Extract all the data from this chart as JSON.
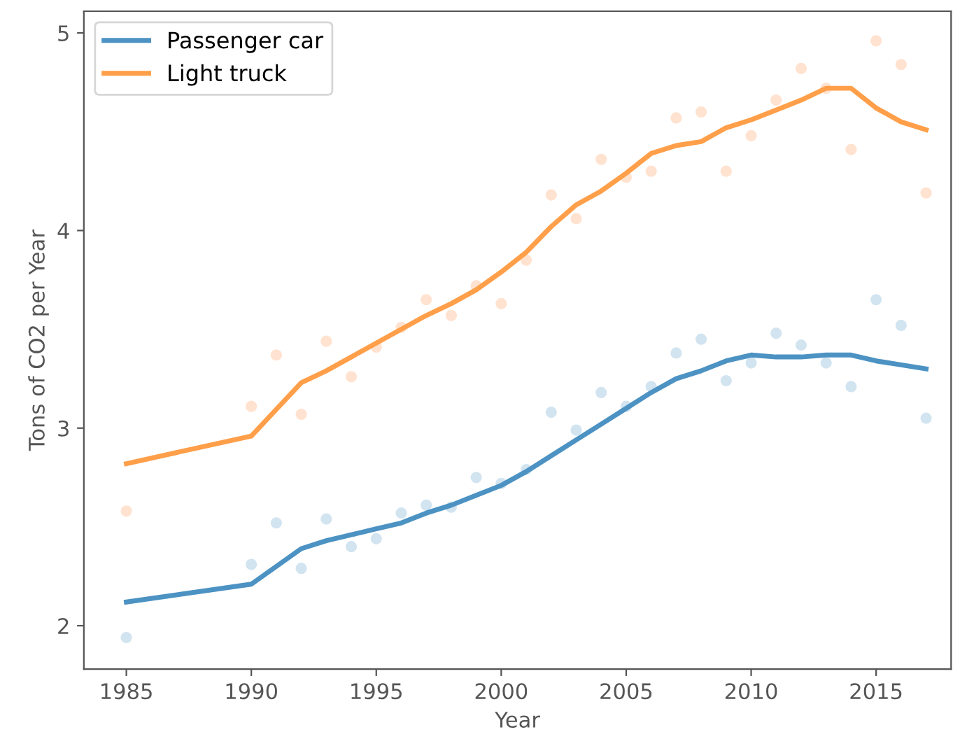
{
  "chart_data": {
    "type": "line",
    "xlabel": "Year",
    "ylabel": "Tons of CO2 per Year",
    "xlim": [
      1983.3,
      2018.0
    ],
    "ylim": [
      1.78,
      5.11
    ],
    "xticks": [
      1985,
      1990,
      1995,
      2000,
      2005,
      2010,
      2015
    ],
    "yticks": [
      2,
      3,
      4,
      5
    ],
    "grid": false,
    "legend": "top left",
    "series": [
      {
        "type": "scatter",
        "color": "#d2e4f0",
        "x": [
          1985,
          1990,
          1991,
          1992,
          1993,
          1994,
          1995,
          1996,
          1997,
          1998,
          1999,
          2000,
          2001,
          2002,
          2003,
          2004,
          2005,
          2006,
          2007,
          2008,
          2009,
          2010,
          2011,
          2012,
          2013,
          2014,
          2015,
          2016,
          2017
        ],
        "values": [
          1.94,
          2.31,
          2.52,
          2.29,
          2.54,
          2.4,
          2.44,
          2.57,
          2.61,
          2.6,
          2.75,
          2.72,
          2.79,
          3.08,
          2.99,
          3.18,
          3.11,
          3.21,
          3.38,
          3.45,
          3.24,
          3.33,
          3.48,
          3.42,
          3.33,
          3.21,
          3.65,
          3.52,
          3.05
        ]
      },
      {
        "type": "scatter",
        "color": "#ffe2cf",
        "x": [
          1985,
          1990,
          1991,
          1992,
          1993,
          1994,
          1995,
          1996,
          1997,
          1998,
          1999,
          2000,
          2001,
          2002,
          2003,
          2004,
          2005,
          2006,
          2007,
          2008,
          2009,
          2010,
          2011,
          2012,
          2013,
          2014,
          2015,
          2016,
          2017
        ],
        "values": [
          2.58,
          3.11,
          3.37,
          3.07,
          3.44,
          3.26,
          3.41,
          3.51,
          3.65,
          3.57,
          3.72,
          3.63,
          3.85,
          4.18,
          4.06,
          4.36,
          4.27,
          4.3,
          4.57,
          4.6,
          4.3,
          4.48,
          4.66,
          4.82,
          4.72,
          4.41,
          4.96,
          4.84,
          4.19
        ]
      },
      {
        "name": "Passenger car",
        "color": "#4c92c3",
        "x": [
          1985,
          1990,
          1992,
          1993,
          1994,
          1995,
          1996,
          1997,
          1998,
          1999,
          2000,
          2001,
          2002,
          2003,
          2004,
          2005,
          2006,
          2007,
          2008,
          2009,
          2010,
          2011,
          2012,
          2013,
          2014,
          2015,
          2016,
          2017
        ],
        "values": [
          2.12,
          2.21,
          2.39,
          2.43,
          2.46,
          2.49,
          2.52,
          2.57,
          2.61,
          2.66,
          2.71,
          2.78,
          2.86,
          2.94,
          3.02,
          3.1,
          3.18,
          3.25,
          3.29,
          3.34,
          3.37,
          3.36,
          3.36,
          3.37,
          3.37,
          3.34,
          3.32,
          3.3
        ]
      },
      {
        "name": "Light truck",
        "color": "#ff9f4a",
        "x": [
          1985,
          1990,
          1992,
          1993,
          1994,
          1995,
          1996,
          1997,
          1998,
          1999,
          2000,
          2001,
          2002,
          2003,
          2004,
          2005,
          2006,
          2007,
          2008,
          2009,
          2010,
          2011,
          2012,
          2013,
          2014,
          2015,
          2016,
          2017
        ],
        "values": [
          2.82,
          2.96,
          3.23,
          3.29,
          3.36,
          3.43,
          3.5,
          3.57,
          3.63,
          3.7,
          3.79,
          3.89,
          4.02,
          4.13,
          4.2,
          4.29,
          4.39,
          4.43,
          4.45,
          4.52,
          4.56,
          4.61,
          4.66,
          4.72,
          4.72,
          4.62,
          4.55,
          4.51
        ]
      }
    ]
  }
}
